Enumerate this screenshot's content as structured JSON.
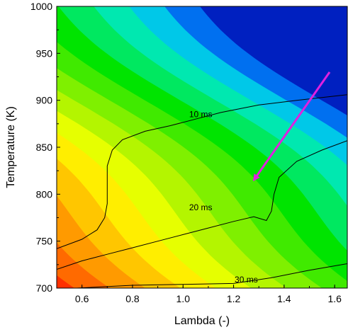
{
  "chart_data": {
    "type": "contour",
    "title": "",
    "xlabel": "Lambda (-)",
    "ylabel": "Temperature (K)",
    "xlim": [
      0.5,
      1.65
    ],
    "ylim": [
      700,
      1000
    ],
    "xticks": [
      0.6,
      0.8,
      1.0,
      1.2,
      1.4,
      1.6
    ],
    "xtick_labels": [
      "0.6",
      "0.8",
      "1.0",
      "1.2",
      "1.4",
      "1.6"
    ],
    "yticks": [
      700,
      750,
      800,
      850,
      900,
      950,
      1000
    ],
    "ytick_labels": [
      "700",
      "750",
      "800",
      "850",
      "900",
      "950",
      "1000"
    ],
    "grid": false,
    "colormap": [
      "#e80000",
      "#ff3000",
      "#ff6a00",
      "#ff9a00",
      "#ffc600",
      "#ffee00",
      "#e6ff00",
      "#b4f500",
      "#7ff000",
      "#40ea00",
      "#00e400",
      "#00e860",
      "#00e8b0",
      "#00c8e8",
      "#0070f0",
      "#0020c0"
    ],
    "contour_lines": [
      {
        "label": "10 ms",
        "label_at": [
          1.07,
          882
        ],
        "points": [
          [
            0.5,
            742
          ],
          [
            0.6,
            752
          ],
          [
            0.66,
            762
          ],
          [
            0.69,
            775
          ],
          [
            0.7,
            790
          ],
          [
            0.7,
            810
          ],
          [
            0.7,
            830
          ],
          [
            0.72,
            847
          ],
          [
            0.76,
            858
          ],
          [
            0.85,
            867
          ],
          [
            0.95,
            873
          ],
          [
            1.05,
            880
          ],
          [
            1.15,
            887
          ],
          [
            1.3,
            895
          ],
          [
            1.45,
            900
          ],
          [
            1.65,
            906
          ]
        ]
      },
      {
        "label": "20 ms",
        "label_at": [
          1.07,
          783
        ],
        "points": [
          [
            0.5,
            720
          ],
          [
            0.6,
            729
          ],
          [
            0.7,
            736
          ],
          [
            0.8,
            743
          ],
          [
            0.9,
            750
          ],
          [
            1.0,
            757
          ],
          [
            1.1,
            764
          ],
          [
            1.2,
            771
          ],
          [
            1.28,
            776
          ],
          [
            1.33,
            772
          ],
          [
            1.35,
            782
          ],
          [
            1.36,
            800
          ],
          [
            1.38,
            818
          ],
          [
            1.45,
            835
          ],
          [
            1.55,
            847
          ],
          [
            1.65,
            857
          ]
        ]
      },
      {
        "label": "30 ms",
        "label_at": [
          1.25,
          706
        ],
        "points": [
          [
            0.58,
            700
          ],
          [
            0.8,
            703
          ],
          [
            1.0,
            704
          ],
          [
            1.2,
            705
          ],
          [
            1.35,
            711
          ],
          [
            1.5,
            719
          ],
          [
            1.65,
            726
          ]
        ]
      }
    ],
    "annotations": [
      {
        "type": "arrow",
        "color": "#e020e0",
        "from": [
          1.58,
          930
        ],
        "to": [
          1.28,
          815
        ]
      }
    ]
  }
}
